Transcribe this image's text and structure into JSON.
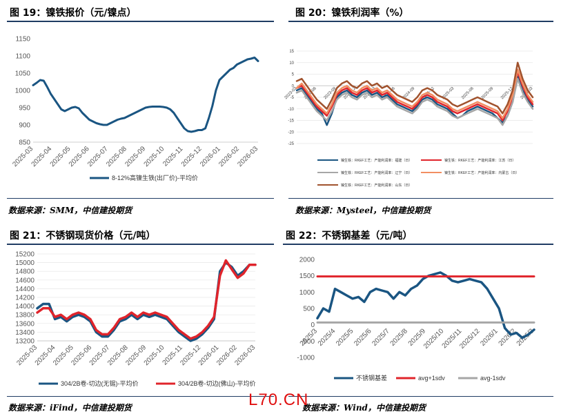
{
  "panels": {
    "p19": {
      "title": "图 19：镍铁报价（元/镍点）",
      "source": "数据来源：SMM，中信建投期货"
    },
    "p20": {
      "title": "图 20：镍铁利润率（%）",
      "source": "数据来源：Mysteel，中信建投期货"
    },
    "p21": {
      "title": "图 21：不锈钢现货价格（元/吨）",
      "source": "数据来源：iFind，中信建投期货"
    },
    "p22": {
      "title": "图 22：不锈钢基差（元/吨）",
      "source": "数据来源：Wind，中信建投期货"
    }
  },
  "watermark": "L70.CN",
  "colors": {
    "rule": "#1f3b63",
    "navy": "#1a5582",
    "red": "#e0242b",
    "gray": "#a6a6a6",
    "orange": "#f28e62",
    "brown": "#a0522d"
  },
  "chart_data": [
    {
      "id": "nickel_iron_price",
      "type": "line",
      "ylim": [
        850,
        1150
      ],
      "yticks": [
        850,
        900,
        950,
        1000,
        1050,
        1100,
        1150
      ],
      "x_labels": [
        "2025-03",
        "2025-04",
        "2025-05",
        "2025-06",
        "2025-07",
        "2025-08",
        "2025-09",
        "2025-10",
        "2025-11",
        "2025-12",
        "2026-01",
        "2026-02",
        "2026-03"
      ],
      "series": [
        {
          "name": "8-12%高镍生铁(出厂价)-平均价",
          "color": "#1a5582",
          "values": [
            1015,
            1022,
            1030,
            1028,
            1010,
            990,
            975,
            960,
            945,
            940,
            945,
            950,
            952,
            948,
            935,
            925,
            915,
            910,
            905,
            902,
            900,
            900,
            905,
            910,
            915,
            918,
            920,
            925,
            930,
            935,
            940,
            945,
            950,
            952,
            953,
            953,
            953,
            952,
            950,
            945,
            935,
            920,
            905,
            890,
            882,
            880,
            882,
            885,
            885,
            890,
            920,
            955,
            1000,
            1030,
            1040,
            1050,
            1060,
            1065,
            1075,
            1080,
            1085,
            1090,
            1092,
            1095,
            1085
          ]
        }
      ]
    },
    {
      "id": "nickel_iron_margin",
      "type": "line",
      "ylim": [
        -25,
        15
      ],
      "yticks": [
        15,
        10,
        5,
        0,
        -5,
        -10,
        -15,
        -20,
        -25
      ],
      "x_labels": [
        "2023-03",
        "2023-06",
        "2023-09",
        "2023-12",
        "2024-03",
        "2024-06",
        "2024-09",
        "2024-12",
        "2025-03",
        "2025-06",
        "2025-09",
        "2025-12",
        "2026-03"
      ],
      "series": [
        {
          "name": "镍生铁：RKEF工艺：产能利润率：福建（日）",
          "color": "#1a5582",
          "values": [
            -2,
            -1,
            -4,
            -7,
            -10,
            -12,
            -17,
            -12,
            -5,
            -3,
            -2,
            -4,
            -5,
            -3,
            -2,
            -4,
            -3,
            -5,
            -4,
            -6,
            -8,
            -9,
            -10,
            -11,
            -9,
            -6,
            -5,
            -6,
            -8,
            -9,
            -10,
            -12,
            -14,
            -13,
            -11,
            -10,
            -9,
            -10,
            -11,
            -12,
            -14,
            -16,
            -13,
            -7,
            4,
            -2,
            -6,
            -9
          ]
        },
        {
          "name": "镍生铁：RKEF工艺：产能利润率：江苏（日）",
          "color": "#e0242b",
          "values": [
            -1,
            0,
            -3,
            -6,
            -9,
            -11,
            -13,
            -9,
            -4,
            -2,
            -1,
            -3,
            -4,
            -2,
            -1,
            -3,
            -2,
            -4,
            -3,
            -5,
            -7,
            -8,
            -9,
            -10,
            -8,
            -5,
            -4,
            -5,
            -7,
            -8,
            -9,
            -11,
            -12,
            -11,
            -10,
            -9,
            -8,
            -9,
            -10,
            -11,
            -12,
            -15,
            -11,
            -5,
            6,
            0,
            -5,
            -8
          ]
        },
        {
          "name": "镍生铁：RKEF工艺：产能利润率：辽宁（日）",
          "color": "#a6a6a6",
          "values": [
            -3,
            -2,
            -5,
            -8,
            -11,
            -13,
            -15,
            -11,
            -6,
            -4,
            -3,
            -5,
            -6,
            -4,
            -3,
            -5,
            -4,
            -6,
            -5,
            -7,
            -9,
            -10,
            -11,
            -12,
            -10,
            -7,
            -6,
            -7,
            -9,
            -10,
            -11,
            -13,
            -14,
            -13,
            -12,
            -11,
            -10,
            -11,
            -12,
            -13,
            -14,
            -17,
            -13,
            -7,
            3,
            -3,
            -7,
            -10
          ]
        },
        {
          "name": "镍生铁：RKEF工艺：产能利润率：内蒙古（日）",
          "color": "#f28e62",
          "values": [
            -1,
            1,
            -2,
            -5,
            -8,
            -10,
            -12,
            -8,
            -3,
            -1,
            0,
            -2,
            -3,
            -1,
            0,
            -2,
            -1,
            -3,
            -2,
            -4,
            -6,
            -7,
            -8,
            -9,
            -7,
            -4,
            -3,
            -4,
            -6,
            -7,
            -8,
            -10,
            -11,
            -10,
            -9,
            -8,
            -7,
            -8,
            -9,
            -10,
            -11,
            -14,
            -10,
            -4,
            7,
            1,
            -4,
            -7
          ]
        },
        {
          "name": "镍生铁：RKEF工艺：产能利润率：山东（日）",
          "color": "#a0522d",
          "values": [
            2,
            3,
            0,
            -3,
            -6,
            -8,
            -10,
            -6,
            -1,
            1,
            2,
            0,
            -1,
            1,
            2,
            0,
            1,
            -1,
            0,
            -2,
            -4,
            -5,
            -6,
            -7,
            -5,
            -2,
            -1,
            -2,
            -4,
            -5,
            -6,
            -8,
            -9,
            -8,
            -7,
            -6,
            -5,
            -6,
            -7,
            -8,
            -9,
            -12,
            -8,
            -2,
            10,
            3,
            -2,
            -5
          ]
        }
      ]
    },
    {
      "id": "stainless_spot_price",
      "type": "line",
      "ylim": [
        13200,
        15200
      ],
      "yticks": [
        13200,
        13400,
        13600,
        13800,
        14000,
        14200,
        14400,
        14600,
        14800,
        15000,
        15200
      ],
      "x_labels": [
        "2025-03",
        "2025-04",
        "2025-05",
        "2025-06",
        "2025-07",
        "2025-08",
        "2025-09",
        "2025-10",
        "2025-11",
        "2025-12",
        "2026-01",
        "2026-02",
        "2026-03"
      ],
      "series": [
        {
          "name": "304/2B卷-切边(无锡)-平均价",
          "color": "#1a5582",
          "values": [
            13950,
            14050,
            14050,
            13700,
            13750,
            13650,
            13750,
            13800,
            13750,
            13650,
            13400,
            13300,
            13300,
            13450,
            13650,
            13700,
            13800,
            13700,
            13800,
            13750,
            13800,
            13750,
            13700,
            13550,
            13400,
            13300,
            13200,
            13250,
            13350,
            13500,
            13700,
            14800,
            15000,
            14900,
            14700,
            14800,
            14950,
            14950
          ]
        },
        {
          "name": "304/2B卷-切边(佛山)-平均价",
          "color": "#e0242b",
          "values": [
            13850,
            13950,
            13950,
            13750,
            13800,
            13700,
            13800,
            13850,
            13800,
            13700,
            13450,
            13350,
            13350,
            13500,
            13700,
            13750,
            13850,
            13750,
            13850,
            13800,
            13850,
            13800,
            13750,
            13600,
            13450,
            13350,
            13250,
            13300,
            13400,
            13550,
            13750,
            14700,
            15050,
            14850,
            14650,
            14750,
            14950,
            14950
          ]
        }
      ]
    },
    {
      "id": "stainless_basis",
      "type": "line",
      "ylim": [
        -1000,
        2000
      ],
      "yticks": [
        2000,
        1500,
        1000,
        500,
        0,
        -500,
        -1000
      ],
      "x_labels": [
        "2025/3",
        "2025/4",
        "2025/5",
        "2025/6",
        "2025/7",
        "2025/8",
        "2025/9",
        "2025/10",
        "2025/11",
        "2025/12",
        "2026/1",
        "2026/2",
        "2026/3"
      ],
      "series": [
        {
          "name": "不锈钢基差",
          "color": "#1a5582",
          "values": [
            200,
            500,
            400,
            1100,
            1000,
            900,
            800,
            850,
            700,
            1000,
            1100,
            1050,
            1000,
            800,
            1000,
            900,
            1100,
            1200,
            1400,
            1500,
            1550,
            1600,
            1500,
            1350,
            1300,
            1350,
            1400,
            1350,
            1300,
            1100,
            800,
            500,
            -100,
            -300,
            -250,
            -400,
            -300,
            -150
          ]
        },
        {
          "name": "avg+1sdv",
          "color": "#e0242b",
          "values": [
            1480,
            1480
          ]
        },
        {
          "name": "avg-1sdv",
          "color": "#a6a6a6",
          "values": [
            70,
            70
          ]
        }
      ]
    }
  ]
}
